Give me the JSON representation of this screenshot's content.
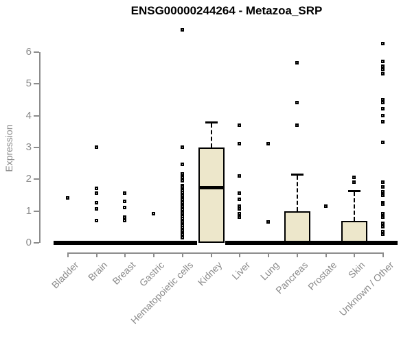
{
  "colors": {
    "box_fill": "#EDE7CB",
    "box_border": "#000000",
    "axis_gray": "#8C8C8C",
    "label_gray": "#8A8A8A",
    "title_color": "#000000"
  },
  "chart_data": {
    "type": "boxplot",
    "title": "ENSG00000244264 - Metazoa_SRP",
    "xlabel": "",
    "ylabel": "Expression",
    "ylim": [
      0,
      6
    ],
    "yticks": [
      0,
      1,
      2,
      3,
      4,
      5,
      6
    ],
    "grid": false,
    "legend": "none",
    "categories": [
      "Bladder",
      "Brain",
      "Breast",
      "Gastric",
      "Hematopoietic cells",
      "Kidney",
      "Liver",
      "Lung",
      "Pancreas",
      "Prostate",
      "Skin",
      "Unknown / Other"
    ],
    "series": [
      {
        "name": "Bladder",
        "q1": 0,
        "median": 0,
        "q3": 0,
        "whisker_high": 0,
        "outliers": [
          1.4
        ]
      },
      {
        "name": "Brain",
        "q1": 0,
        "median": 0,
        "q3": 0,
        "whisker_high": 0,
        "outliers": [
          3.0,
          1.7,
          1.55,
          1.25,
          1.05,
          0.7
        ]
      },
      {
        "name": "Breast",
        "q1": 0,
        "median": 0,
        "q3": 0,
        "whisker_high": 0,
        "outliers": [
          1.55,
          1.3,
          1.1,
          0.8,
          0.7
        ]
      },
      {
        "name": "Gastric",
        "q1": 0,
        "median": 0,
        "q3": 0,
        "whisker_high": 0,
        "outliers": [
          0.9
        ]
      },
      {
        "name": "Hematopoietic cells",
        "q1": 0,
        "median": 0,
        "q3": 0,
        "whisker_high": 0,
        "outliers": [
          6.7,
          3.0,
          2.45,
          2.15,
          2.05,
          1.95,
          1.8,
          1.74,
          1.69,
          1.63,
          1.58,
          1.52,
          1.47,
          1.41,
          1.36,
          1.3,
          1.25,
          1.19,
          1.14,
          1.08,
          1.03,
          0.97,
          0.92,
          0.86,
          0.81,
          0.75,
          0.7,
          0.64,
          0.59,
          0.53,
          0.48,
          0.42,
          0.37,
          0.31,
          0.26,
          0.2,
          0.15
        ]
      },
      {
        "name": "Kidney",
        "q1": 0,
        "median": 1.75,
        "q3": 3.0,
        "whisker_high": 3.8,
        "outliers": []
      },
      {
        "name": "Liver",
        "q1": 0,
        "median": 0,
        "q3": 0,
        "whisker_high": 0,
        "outliers": [
          3.7,
          3.1,
          2.1,
          1.55,
          1.35,
          1.15,
          1.05,
          0.9,
          0.8
        ]
      },
      {
        "name": "Lung",
        "q1": 0,
        "median": 0,
        "q3": 0,
        "whisker_high": 0,
        "outliers": [
          3.1,
          0.65
        ]
      },
      {
        "name": "Pancreas",
        "q1": 0,
        "median": 0,
        "q3": 1.0,
        "whisker_high": 2.15,
        "outliers": [
          5.65,
          4.4,
          3.7
        ]
      },
      {
        "name": "Prostate",
        "q1": 0,
        "median": 0,
        "q3": 0,
        "whisker_high": 0,
        "outliers": [
          1.15
        ]
      },
      {
        "name": "Skin",
        "q1": 0,
        "median": 0,
        "q3": 0.7,
        "whisker_high": 1.65,
        "outliers": [
          2.05,
          1.9
        ]
      },
      {
        "name": "Unknown / Other",
        "q1": 0,
        "median": 0,
        "q3": 0,
        "whisker_high": 0,
        "outliers": [
          6.25,
          5.7,
          5.55,
          5.45,
          5.3,
          4.5,
          4.4,
          4.2,
          4.0,
          3.8,
          3.15,
          1.9,
          1.75,
          1.6,
          1.5,
          1.25,
          1.2,
          0.9,
          0.8,
          0.6,
          0.5,
          0.35,
          0.25
        ]
      }
    ]
  }
}
